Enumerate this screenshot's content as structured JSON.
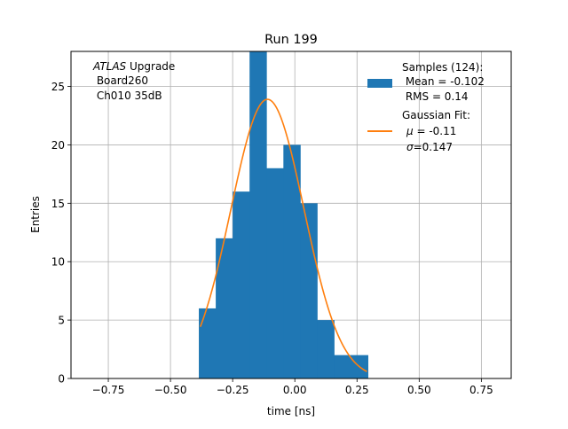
{
  "chart_data": {
    "type": "bar",
    "title": "Run 199",
    "xlabel": "time [ns]",
    "ylabel": "Entries",
    "xlim": [
      -0.9,
      0.87
    ],
    "ylim": [
      0,
      28
    ],
    "grid": true,
    "xticks": [
      -0.75,
      -0.5,
      -0.25,
      0.0,
      0.25,
      0.5,
      0.75
    ],
    "xtick_labels": [
      "−0.75",
      "−0.50",
      "−0.25",
      "0.00",
      "0.25",
      "0.50",
      "0.75"
    ],
    "yticks": [
      0,
      5,
      10,
      15,
      20,
      25
    ],
    "ytick_labels": [
      "0",
      "5",
      "10",
      "15",
      "20",
      "25"
    ],
    "bins": [
      {
        "x0": -0.386,
        "x1": -0.318,
        "count": 6
      },
      {
        "x0": -0.318,
        "x1": -0.25,
        "count": 12
      },
      {
        "x0": -0.25,
        "x1": -0.182,
        "count": 16
      },
      {
        "x0": -0.182,
        "x1": -0.114,
        "count": 28
      },
      {
        "x0": -0.114,
        "x1": -0.046,
        "count": 18
      },
      {
        "x0": -0.046,
        "x1": 0.022,
        "count": 20
      },
      {
        "x0": 0.022,
        "x1": 0.09,
        "count": 15
      },
      {
        "x0": 0.09,
        "x1": 0.158,
        "count": 5
      },
      {
        "x0": 0.158,
        "x1": 0.226,
        "count": 2
      },
      {
        "x0": 0.226,
        "x1": 0.294,
        "count": 2
      }
    ],
    "fit": {
      "mu": -0.11,
      "sigma": 0.147,
      "amplitude": 23.9,
      "x_range": [
        -0.38,
        0.29
      ]
    },
    "legend_position": "top-right",
    "legend": {
      "samples": {
        "line1": "Samples (124):",
        "line2": " Mean = -0.102",
        "line3": " RMS = 0.14",
        "color": "#1f77b4"
      },
      "fit": {
        "line1": "Gaussian Fit:",
        "mu_symbol": "μ",
        "mu_value": " = -0.11",
        "sigma_symbol": "σ",
        "sigma_value": "=0.147",
        "color": "#ff7f0e"
      }
    },
    "annotation": {
      "italic": "ATLAS",
      "line1_rest": " Upgrade",
      "line2": " Board260",
      "line3": " Ch010 35dB"
    }
  }
}
